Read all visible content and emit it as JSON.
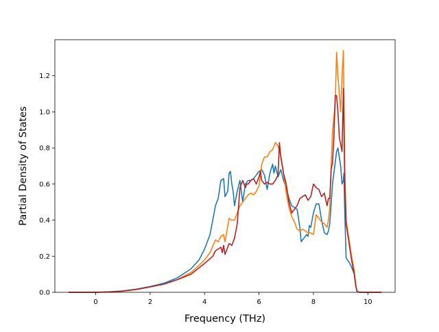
{
  "chart_data": {
    "type": "line",
    "title": "",
    "xlabel": "Frequency (THz)",
    "ylabel": "Partial Density of States",
    "xlim": [
      -1.5,
      11.0
    ],
    "ylim": [
      0.0,
      1.4
    ],
    "xticks": [
      0,
      2,
      4,
      6,
      8,
      10
    ],
    "yticks": [
      0.0,
      0.2,
      0.4,
      0.6,
      0.8,
      1.0,
      1.2
    ],
    "xtick_labels": [
      "0",
      "2",
      "4",
      "6",
      "8",
      "10"
    ],
    "ytick_labels": [
      "0.0",
      "0.2",
      "0.4",
      "0.6",
      "0.8",
      "1.0",
      "1.2"
    ],
    "grid": false,
    "legend": "none",
    "series": [
      {
        "color": "#1f77b4",
        "points": [
          [
            -1.0,
            0
          ],
          [
            0,
            0
          ],
          [
            0.5,
            0.002
          ],
          [
            1,
            0.008
          ],
          [
            1.5,
            0.018
          ],
          [
            2,
            0.032
          ],
          [
            2.5,
            0.05
          ],
          [
            3,
            0.08
          ],
          [
            3.5,
            0.13
          ],
          [
            3.8,
            0.18
          ],
          [
            4.0,
            0.24
          ],
          [
            4.2,
            0.32
          ],
          [
            4.3,
            0.4
          ],
          [
            4.4,
            0.48
          ],
          [
            4.5,
            0.52
          ],
          [
            4.6,
            0.62
          ],
          [
            4.7,
            0.63
          ],
          [
            4.75,
            0.53
          ],
          [
            4.85,
            0.56
          ],
          [
            4.9,
            0.66
          ],
          [
            4.95,
            0.67
          ],
          [
            5.0,
            0.6
          ],
          [
            5.05,
            0.56
          ],
          [
            5.1,
            0.48
          ],
          [
            5.2,
            0.56
          ],
          [
            5.3,
            0.62
          ],
          [
            5.4,
            0.5
          ],
          [
            5.5,
            0.6
          ],
          [
            5.6,
            0.62
          ],
          [
            5.7,
            0.62
          ],
          [
            5.8,
            0.63
          ],
          [
            5.9,
            0.65
          ],
          [
            6.0,
            0.67
          ],
          [
            6.1,
            0.68
          ],
          [
            6.2,
            0.65
          ],
          [
            6.3,
            0.57
          ],
          [
            6.4,
            0.66
          ],
          [
            6.5,
            0.71
          ],
          [
            6.55,
            0.66
          ],
          [
            6.6,
            0.7
          ],
          [
            6.7,
            0.64
          ],
          [
            6.8,
            0.68
          ],
          [
            6.9,
            0.62
          ],
          [
            7.0,
            0.58
          ],
          [
            7.1,
            0.52
          ],
          [
            7.2,
            0.48
          ],
          [
            7.3,
            0.47
          ],
          [
            7.4,
            0.46
          ],
          [
            7.5,
            0.36
          ],
          [
            7.55,
            0.28
          ],
          [
            7.65,
            0.3
          ],
          [
            7.75,
            0.32
          ],
          [
            7.8,
            0.31
          ],
          [
            7.85,
            0.37
          ],
          [
            7.9,
            0.36
          ],
          [
            8.0,
            0.44
          ],
          [
            8.1,
            0.49
          ],
          [
            8.2,
            0.49
          ],
          [
            8.3,
            0.4
          ],
          [
            8.4,
            0.33
          ],
          [
            8.5,
            0.32
          ],
          [
            8.55,
            0.34
          ],
          [
            8.6,
            0.38
          ],
          [
            8.7,
            0.6
          ],
          [
            8.8,
            0.72
          ],
          [
            8.85,
            0.78
          ],
          [
            8.9,
            0.8
          ],
          [
            9.0,
            0.7
          ],
          [
            9.05,
            0.6
          ],
          [
            9.1,
            0.62
          ],
          [
            9.12,
            0.66
          ],
          [
            9.15,
            0.45
          ],
          [
            9.2,
            0.19
          ],
          [
            9.3,
            0.17
          ],
          [
            9.4,
            0.14
          ],
          [
            9.5,
            0.1
          ],
          [
            9.55,
            0.04
          ],
          [
            9.6,
            0.005
          ],
          [
            9.7,
            0
          ],
          [
            10.5,
            0
          ]
        ]
      },
      {
        "color": "#ff7f0e",
        "points": [
          [
            -1.0,
            0
          ],
          [
            0,
            0
          ],
          [
            0.5,
            0.002
          ],
          [
            1,
            0.007
          ],
          [
            1.5,
            0.016
          ],
          [
            2,
            0.03
          ],
          [
            2.5,
            0.045
          ],
          [
            3,
            0.07
          ],
          [
            3.5,
            0.11
          ],
          [
            3.8,
            0.15
          ],
          [
            4.0,
            0.18
          ],
          [
            4.2,
            0.22
          ],
          [
            4.4,
            0.29
          ],
          [
            4.5,
            0.28
          ],
          [
            4.6,
            0.31
          ],
          [
            4.7,
            0.32
          ],
          [
            4.75,
            0.28
          ],
          [
            4.8,
            0.32
          ],
          [
            4.9,
            0.41
          ],
          [
            5.0,
            0.4
          ],
          [
            5.1,
            0.4
          ],
          [
            5.2,
            0.44
          ],
          [
            5.3,
            0.48
          ],
          [
            5.4,
            0.5
          ],
          [
            5.5,
            0.52
          ],
          [
            5.6,
            0.54
          ],
          [
            5.7,
            0.55
          ],
          [
            5.8,
            0.54
          ],
          [
            5.9,
            0.56
          ],
          [
            6.0,
            0.59
          ],
          [
            6.1,
            0.71
          ],
          [
            6.2,
            0.75
          ],
          [
            6.3,
            0.75
          ],
          [
            6.4,
            0.78
          ],
          [
            6.5,
            0.79
          ],
          [
            6.6,
            0.83
          ],
          [
            6.7,
            0.81
          ],
          [
            6.8,
            0.76
          ],
          [
            6.9,
            0.66
          ],
          [
            7.0,
            0.55
          ],
          [
            7.1,
            0.47
          ],
          [
            7.2,
            0.42
          ],
          [
            7.3,
            0.39
          ],
          [
            7.4,
            0.35
          ],
          [
            7.5,
            0.34
          ],
          [
            7.6,
            0.35
          ],
          [
            7.7,
            0.34
          ],
          [
            7.8,
            0.33
          ],
          [
            7.9,
            0.33
          ],
          [
            8.0,
            0.32
          ],
          [
            8.1,
            0.43
          ],
          [
            8.2,
            0.41
          ],
          [
            8.3,
            0.39
          ],
          [
            8.4,
            0.38
          ],
          [
            8.5,
            0.36
          ],
          [
            8.55,
            0.4
          ],
          [
            8.6,
            0.47
          ],
          [
            8.65,
            0.7
          ],
          [
            8.7,
            0.89
          ],
          [
            8.8,
            1.05
          ],
          [
            8.85,
            1.33
          ],
          [
            8.9,
            1.2
          ],
          [
            8.95,
            1.1
          ],
          [
            9.0,
            1.0
          ],
          [
            9.05,
            1.2
          ],
          [
            9.1,
            1.34
          ],
          [
            9.12,
            1.1
          ],
          [
            9.15,
            0.7
          ],
          [
            9.2,
            0.4
          ],
          [
            9.3,
            0.3
          ],
          [
            9.4,
            0.2
          ],
          [
            9.5,
            0.12
          ],
          [
            9.55,
            0.05
          ],
          [
            9.6,
            0.005
          ],
          [
            9.7,
            0
          ],
          [
            10.5,
            0
          ]
        ]
      },
      {
        "color": "#b22222",
        "points": [
          [
            -1.0,
            0
          ],
          [
            0,
            0
          ],
          [
            0.5,
            0.002
          ],
          [
            1,
            0.007
          ],
          [
            1.5,
            0.016
          ],
          [
            2,
            0.03
          ],
          [
            2.5,
            0.045
          ],
          [
            3,
            0.07
          ],
          [
            3.5,
            0.1
          ],
          [
            4.0,
            0.16
          ],
          [
            4.3,
            0.2
          ],
          [
            4.4,
            0.23
          ],
          [
            4.5,
            0.24
          ],
          [
            4.6,
            0.25
          ],
          [
            4.65,
            0.22
          ],
          [
            4.7,
            0.26
          ],
          [
            4.75,
            0.21
          ],
          [
            4.8,
            0.23
          ],
          [
            4.9,
            0.27
          ],
          [
            5.0,
            0.26
          ],
          [
            5.05,
            0.28
          ],
          [
            5.1,
            0.3
          ],
          [
            5.2,
            0.38
          ],
          [
            5.3,
            0.58
          ],
          [
            5.35,
            0.6
          ],
          [
            5.4,
            0.62
          ],
          [
            5.5,
            0.58
          ],
          [
            5.55,
            0.6
          ],
          [
            5.6,
            0.6
          ],
          [
            5.7,
            0.62
          ],
          [
            5.8,
            0.63
          ],
          [
            5.9,
            0.6
          ],
          [
            6.0,
            0.64
          ],
          [
            6.05,
            0.67
          ],
          [
            6.1,
            0.62
          ],
          [
            6.2,
            0.6
          ],
          [
            6.3,
            0.61
          ],
          [
            6.4,
            0.6
          ],
          [
            6.5,
            0.6
          ],
          [
            6.6,
            0.62
          ],
          [
            6.7,
            0.65
          ],
          [
            6.75,
            0.83
          ],
          [
            6.8,
            0.75
          ],
          [
            6.9,
            0.66
          ],
          [
            7.0,
            0.6
          ],
          [
            7.1,
            0.5
          ],
          [
            7.2,
            0.44
          ],
          [
            7.3,
            0.46
          ],
          [
            7.4,
            0.48
          ],
          [
            7.5,
            0.52
          ],
          [
            7.6,
            0.53
          ],
          [
            7.7,
            0.54
          ],
          [
            7.8,
            0.51
          ],
          [
            7.9,
            0.53
          ],
          [
            8.0,
            0.6
          ],
          [
            8.1,
            0.58
          ],
          [
            8.2,
            0.57
          ],
          [
            8.3,
            0.53
          ],
          [
            8.4,
            0.55
          ],
          [
            8.5,
            0.48
          ],
          [
            8.55,
            0.52
          ],
          [
            8.6,
            0.52
          ],
          [
            8.65,
            0.68
          ],
          [
            8.7,
            0.72
          ],
          [
            8.75,
            0.85
          ],
          [
            8.8,
            1.09
          ],
          [
            8.85,
            1.09
          ],
          [
            8.9,
            1.0
          ],
          [
            8.95,
            0.86
          ],
          [
            9.0,
            0.82
          ],
          [
            9.05,
            0.78
          ],
          [
            9.1,
            1.13
          ],
          [
            9.15,
            0.6
          ],
          [
            9.2,
            0.38
          ],
          [
            9.3,
            0.28
          ],
          [
            9.4,
            0.18
          ],
          [
            9.5,
            0.1
          ],
          [
            9.55,
            0.04
          ],
          [
            9.6,
            0.005
          ],
          [
            9.7,
            0
          ],
          [
            10.5,
            0
          ]
        ]
      }
    ]
  }
}
